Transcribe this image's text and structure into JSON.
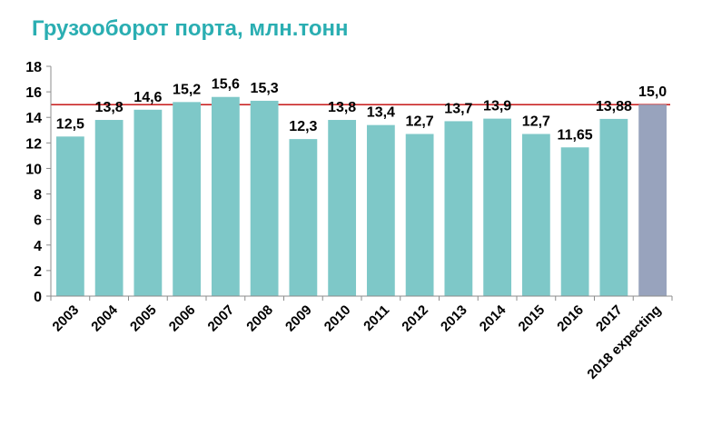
{
  "title": "Грузооборот порта, млн.тонн",
  "colors": {
    "title": "#2aaeb2",
    "bar": "#7ec8c8",
    "bar_highlight": "#98a3bd",
    "reference_line": "#c00000",
    "axis": "#8c8c8c"
  },
  "chart_data": {
    "type": "bar",
    "title": "Грузооборот порта, млн.тонн",
    "xlabel": "",
    "ylabel": "",
    "ylim": [
      0,
      18
    ],
    "yticks": [
      "0",
      "2",
      "4",
      "6",
      "8",
      "10",
      "12",
      "14",
      "16",
      "18"
    ],
    "grid": false,
    "reference_line": 15.0,
    "categories": [
      "2003",
      "2004",
      "2005",
      "2006",
      "2007",
      "2008",
      "2009",
      "2010",
      "2011",
      "2012",
      "2013",
      "2014",
      "2015",
      "2016",
      "2017",
      "2018 expecting"
    ],
    "values": [
      12.5,
      13.8,
      14.6,
      15.2,
      15.6,
      15.3,
      12.3,
      13.8,
      13.4,
      12.7,
      13.7,
      13.9,
      12.7,
      11.65,
      13.88,
      15.0
    ],
    "data_labels": [
      "12,5",
      "13,8",
      "14,6",
      "15,2",
      "15,6",
      "15,3",
      "12,3",
      "13,8",
      "13,4",
      "12,7",
      "13,7",
      "13,9",
      "12,7",
      "11,65",
      "13,88",
      "15,0"
    ],
    "highlight_index": 15
  }
}
